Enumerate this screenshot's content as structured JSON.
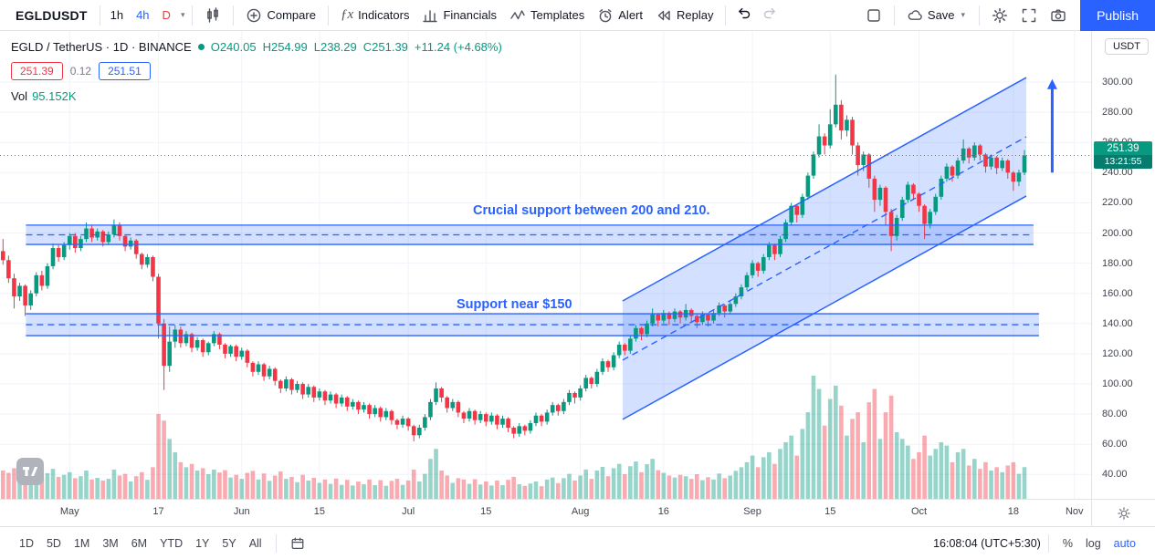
{
  "toolbar": {
    "symbol": "EGLDUSDT",
    "intervals": [
      {
        "label": "1h",
        "color": "#131722"
      },
      {
        "label": "4h",
        "color": "#2962ff"
      },
      {
        "label": "D",
        "color": "#f23645"
      }
    ],
    "compare_label": "Compare",
    "indicators_label": "Indicators",
    "financials_label": "Financials",
    "templates_label": "Templates",
    "alert_label": "Alert",
    "replay_label": "Replay",
    "save_label": "Save",
    "publish_label": "Publish"
  },
  "legend": {
    "title": "EGLD / TetherUS · 1D · BINANCE",
    "ohlc": {
      "o": "O240.05",
      "h": "H254.99",
      "l": "L238.29",
      "c": "C251.39",
      "chg": "+11.24 (+4.68%)"
    },
    "sell_price": "251.39",
    "spread": "0.12",
    "buy_price": "251.51",
    "vol_label": "Vol",
    "vol_value": "95.152K"
  },
  "annotations": {
    "upper": "Crucial support between 200 and 210.",
    "lower": "Support near $150"
  },
  "price_scale": {
    "currency_label": "USDT",
    "last_price": "251.39",
    "countdown": "13:21:55",
    "ticks": [
      {
        "p": 300,
        "label": "300.00"
      },
      {
        "p": 280,
        "label": "280.00"
      },
      {
        "p": 260,
        "label": "260.00"
      },
      {
        "p": 240,
        "label": "240.00"
      },
      {
        "p": 220,
        "label": "220.00"
      },
      {
        "p": 200,
        "label": "200.00"
      },
      {
        "p": 180,
        "label": "180.00"
      },
      {
        "p": 160,
        "label": "160.00"
      },
      {
        "p": 140,
        "label": "140.00"
      },
      {
        "p": 120,
        "label": "120.00"
      },
      {
        "p": 100,
        "label": "100.00"
      },
      {
        "p": 80,
        "label": "80.00"
      },
      {
        "p": 60,
        "label": "60.00"
      },
      {
        "p": 40,
        "label": "40.00"
      }
    ]
  },
  "time_axis": {
    "ticks": [
      {
        "i": 12,
        "label": "May"
      },
      {
        "i": 28,
        "label": "17"
      },
      {
        "i": 43,
        "label": "Jun"
      },
      {
        "i": 57,
        "label": "15"
      },
      {
        "i": 73,
        "label": "Jul"
      },
      {
        "i": 87,
        "label": "15"
      },
      {
        "i": 104,
        "label": "Aug"
      },
      {
        "i": 119,
        "label": "16"
      },
      {
        "i": 135,
        "label": "Sep"
      },
      {
        "i": 149,
        "label": "15"
      },
      {
        "i": 165,
        "label": "Oct"
      },
      {
        "i": 182,
        "label": "18"
      },
      {
        "i": 193,
        "label": "Nov"
      }
    ]
  },
  "bottom_bar": {
    "ranges": [
      "1D",
      "5D",
      "1M",
      "3M",
      "6M",
      "YTD",
      "1Y",
      "5Y",
      "All"
    ],
    "clock": "16:08:04 (UTC+5:30)",
    "percent_label": "%",
    "log_label": "log",
    "auto_label": "auto"
  },
  "chart_data": {
    "type": "candlestick",
    "title": "EGLD / TetherUS Daily on BINANCE",
    "symbol": "EGLD/USDT",
    "interval": "1D",
    "exchange": "BINANCE",
    "last": {
      "open": 240.05,
      "high": 254.99,
      "low": 238.29,
      "close": 251.39,
      "change": "+11.24 (+4.68%)",
      "volume_k": 95.152
    },
    "ylim": [
      30,
      310
    ],
    "colors": {
      "up": "#089981",
      "down": "#f23645",
      "volume_up": "rgba(8,153,129,0.42)",
      "volume_down": "rgba(242,54,69,0.42)",
      "drawing": "#2962ff",
      "drawing_fill": "rgba(41,98,255,0.20)",
      "grid": "#f0f3fa",
      "price_line": "#787b86"
    },
    "price_line": 251.39,
    "drawings": {
      "bands": [
        {
          "i1": 4.5,
          "i2": 186,
          "top": 205.2,
          "bottom": 192.4,
          "note": "Crucial support between 200 and 210."
        },
        {
          "i1": 4.5,
          "i2": 187,
          "top": 146.5,
          "bottom": 132.0,
          "note": "Support near $150"
        }
      ],
      "channel": {
        "i1": 112,
        "i2": 184,
        "top1": 155,
        "top2": 303,
        "bottom1": 76.5,
        "bottom2": 224.5
      },
      "arrow": {
        "i": 189,
        "from": 240,
        "to": 302
      }
    },
    "candles": [
      [
        188,
        196,
        179,
        182,
        85
      ],
      [
        182,
        185,
        167,
        170,
        78
      ],
      [
        170,
        173,
        150,
        158,
        92
      ],
      [
        158,
        167,
        155,
        165,
        70
      ],
      [
        165,
        166,
        145,
        152,
        88
      ],
      [
        152,
        162,
        149,
        160,
        75
      ],
      [
        160,
        174,
        158,
        172,
        82
      ],
      [
        172,
        175,
        162,
        165,
        64
      ],
      [
        165,
        180,
        163,
        178,
        77
      ],
      [
        178,
        193,
        176,
        190,
        90
      ],
      [
        190,
        192,
        181,
        184,
        66
      ],
      [
        184,
        194,
        182,
        192,
        72
      ],
      [
        192,
        200,
        189,
        198,
        80
      ],
      [
        198,
        200,
        187,
        190,
        62
      ],
      [
        190,
        198,
        188,
        196,
        68
      ],
      [
        196,
        207,
        194,
        203,
        85
      ],
      [
        203,
        205,
        194,
        197,
        58
      ],
      [
        197,
        203,
        195,
        201,
        63
      ],
      [
        201,
        202,
        191,
        194,
        55
      ],
      [
        194,
        201,
        192,
        199,
        60
      ],
      [
        199,
        209,
        197,
        205,
        88
      ],
      [
        205,
        207,
        195,
        198,
        70
      ],
      [
        198,
        199,
        188,
        191,
        75
      ],
      [
        191,
        197,
        189,
        195,
        52
      ],
      [
        195,
        196,
        183,
        186,
        68
      ],
      [
        186,
        187,
        176,
        179,
        80
      ],
      [
        179,
        186,
        177,
        184,
        57
      ],
      [
        184,
        185,
        168,
        171,
        95
      ],
      [
        171,
        173,
        130,
        140,
        255
      ],
      [
        140,
        143,
        96,
        112,
        235
      ],
      [
        112,
        138,
        108,
        128,
        180
      ],
      [
        128,
        139,
        124,
        136,
        140
      ],
      [
        136,
        138,
        124,
        127,
        110
      ],
      [
        127,
        135,
        125,
        133,
        95
      ],
      [
        133,
        134,
        121,
        124,
        105
      ],
      [
        124,
        131,
        122,
        129,
        85
      ],
      [
        129,
        130,
        118,
        121,
        92
      ],
      [
        121,
        128,
        119,
        127,
        74
      ],
      [
        127,
        135,
        125,
        133,
        88
      ],
      [
        133,
        134,
        123,
        126,
        79
      ],
      [
        126,
        127,
        117,
        120,
        86
      ],
      [
        120,
        126,
        118,
        125,
        64
      ],
      [
        125,
        126,
        115,
        118,
        72
      ],
      [
        118,
        124,
        116,
        122,
        60
      ],
      [
        122,
        123,
        111,
        114,
        78
      ],
      [
        114,
        115,
        105,
        108,
        84
      ],
      [
        108,
        115,
        106,
        113,
        58
      ],
      [
        113,
        114,
        102,
        105,
        76
      ],
      [
        105,
        112,
        103,
        110,
        54
      ],
      [
        110,
        111,
        99,
        102,
        70
      ],
      [
        102,
        103,
        94,
        97,
        82
      ],
      [
        97,
        105,
        95,
        103,
        60
      ],
      [
        103,
        104,
        93,
        96,
        66
      ],
      [
        96,
        102,
        94,
        100,
        50
      ],
      [
        100,
        101,
        90,
        93,
        72
      ],
      [
        93,
        100,
        91,
        98,
        55
      ],
      [
        98,
        99,
        88,
        91,
        63
      ],
      [
        91,
        97,
        89,
        95,
        48
      ],
      [
        95,
        96,
        86,
        89,
        58
      ],
      [
        89,
        95,
        87,
        93,
        45
      ],
      [
        93,
        94,
        84,
        87,
        61
      ],
      [
        87,
        93,
        85,
        91,
        42
      ],
      [
        91,
        92,
        82,
        85,
        57
      ],
      [
        85,
        90,
        83,
        88,
        40
      ],
      [
        88,
        89,
        80,
        83,
        52
      ],
      [
        83,
        88,
        81,
        86,
        44
      ],
      [
        86,
        87,
        77,
        80,
        58
      ],
      [
        80,
        86,
        78,
        84,
        41
      ],
      [
        84,
        85,
        75,
        78,
        56
      ],
      [
        78,
        84,
        76,
        82,
        39
      ],
      [
        82,
        83,
        73,
        76,
        54
      ],
      [
        76,
        77,
        70,
        73,
        60
      ],
      [
        73,
        79,
        71,
        77,
        42
      ],
      [
        77,
        78,
        69,
        72,
        55
      ],
      [
        72,
        73,
        62,
        66,
        88
      ],
      [
        66,
        73,
        64,
        71,
        52
      ],
      [
        71,
        80,
        69,
        78,
        75
      ],
      [
        78,
        90,
        76,
        88,
        120
      ],
      [
        88,
        101,
        86,
        97,
        150
      ],
      [
        97,
        98,
        88,
        91,
        85
      ],
      [
        91,
        92,
        81,
        84,
        70
      ],
      [
        84,
        90,
        82,
        88,
        48
      ],
      [
        88,
        89,
        78,
        81,
        62
      ],
      [
        81,
        82,
        74,
        77,
        58
      ],
      [
        77,
        84,
        75,
        82,
        45
      ],
      [
        82,
        83,
        73,
        76,
        59
      ],
      [
        76,
        82,
        74,
        80,
        43
      ],
      [
        80,
        81,
        72,
        75,
        52
      ],
      [
        75,
        81,
        73,
        79,
        40
      ],
      [
        79,
        80,
        70,
        73,
        55
      ],
      [
        73,
        79,
        71,
        77,
        41
      ],
      [
        77,
        78,
        68,
        71,
        57
      ],
      [
        71,
        72,
        64,
        67,
        66
      ],
      [
        67,
        74,
        65,
        72,
        44
      ],
      [
        72,
        73,
        66,
        69,
        39
      ],
      [
        69,
        76,
        67,
        74,
        46
      ],
      [
        74,
        81,
        72,
        79,
        52
      ],
      [
        79,
        80,
        72,
        75,
        38
      ],
      [
        75,
        83,
        73,
        81,
        58
      ],
      [
        81,
        88,
        79,
        86,
        64
      ],
      [
        86,
        87,
        79,
        82,
        47
      ],
      [
        82,
        90,
        80,
        88,
        62
      ],
      [
        88,
        96,
        86,
        94,
        75
      ],
      [
        94,
        95,
        87,
        91,
        55
      ],
      [
        91,
        99,
        89,
        97,
        70
      ],
      [
        97,
        106,
        95,
        104,
        88
      ],
      [
        104,
        105,
        97,
        100,
        60
      ],
      [
        100,
        110,
        98,
        108,
        85
      ],
      [
        108,
        117,
        106,
        115,
        96
      ],
      [
        115,
        116,
        108,
        111,
        68
      ],
      [
        111,
        121,
        109,
        119,
        92
      ],
      [
        119,
        128,
        117,
        126,
        105
      ],
      [
        126,
        127,
        119,
        122,
        74
      ],
      [
        122,
        132,
        120,
        130,
        98
      ],
      [
        130,
        139,
        128,
        137,
        112
      ],
      [
        137,
        138,
        129,
        133,
        80
      ],
      [
        133,
        142,
        131,
        140,
        104
      ],
      [
        140,
        150,
        138,
        146,
        120
      ],
      [
        146,
        147,
        138,
        142,
        86
      ],
      [
        142,
        149,
        140,
        147,
        78
      ],
      [
        147,
        148,
        139,
        143,
        70
      ],
      [
        143,
        150,
        141,
        148,
        64
      ],
      [
        148,
        149,
        140,
        144,
        72
      ],
      [
        144,
        153,
        142,
        149,
        68
      ],
      [
        149,
        150,
        141,
        145,
        60
      ],
      [
        145,
        146,
        137,
        141,
        74
      ],
      [
        141,
        148,
        139,
        146,
        56
      ],
      [
        146,
        147,
        138,
        142,
        65
      ],
      [
        142,
        149,
        140,
        147,
        58
      ],
      [
        147,
        154,
        145,
        152,
        76
      ],
      [
        152,
        153,
        144,
        148,
        62
      ],
      [
        148,
        155,
        146,
        153,
        70
      ],
      [
        153,
        160,
        151,
        158,
        84
      ],
      [
        158,
        166,
        156,
        164,
        95
      ],
      [
        164,
        174,
        162,
        172,
        110
      ],
      [
        172,
        182,
        170,
        180,
        130
      ],
      [
        180,
        181,
        171,
        175,
        95
      ],
      [
        175,
        186,
        173,
        184,
        125
      ],
      [
        184,
        194,
        182,
        192,
        140
      ],
      [
        192,
        193,
        182,
        186,
        105
      ],
      [
        186,
        198,
        184,
        196,
        150
      ],
      [
        196,
        209,
        194,
        207,
        170
      ],
      [
        207,
        220,
        205,
        218,
        190
      ],
      [
        218,
        219,
        207,
        212,
        130
      ],
      [
        212,
        226,
        210,
        224,
        210
      ],
      [
        224,
        240,
        222,
        238,
        260
      ],
      [
        238,
        254,
        236,
        252,
        370
      ],
      [
        252,
        272,
        250,
        264,
        330
      ],
      [
        264,
        266,
        252,
        258,
        220
      ],
      [
        258,
        282,
        256,
        272,
        300
      ],
      [
        272,
        305,
        270,
        285,
        340
      ],
      [
        285,
        288,
        262,
        268,
        280
      ],
      [
        268,
        278,
        264,
        275,
        190
      ],
      [
        275,
        277,
        252,
        258,
        240
      ],
      [
        258,
        260,
        238,
        245,
        260
      ],
      [
        245,
        254,
        241,
        252,
        170
      ],
      [
        252,
        253,
        230,
        236,
        290
      ],
      [
        236,
        238,
        214,
        222,
        330
      ],
      [
        222,
        232,
        218,
        230,
        180
      ],
      [
        230,
        231,
        205,
        214,
        260
      ],
      [
        214,
        216,
        188,
        198,
        310
      ],
      [
        198,
        212,
        195,
        210,
        200
      ],
      [
        210,
        224,
        208,
        222,
        180
      ],
      [
        222,
        234,
        220,
        232,
        160
      ],
      [
        232,
        233,
        222,
        226,
        120
      ],
      [
        226,
        227,
        214,
        218,
        140
      ],
      [
        218,
        219,
        196,
        206,
        190
      ],
      [
        206,
        216,
        203,
        214,
        130
      ],
      [
        214,
        226,
        212,
        224,
        150
      ],
      [
        224,
        238,
        222,
        236,
        170
      ],
      [
        236,
        246,
        234,
        244,
        160
      ],
      [
        244,
        245,
        234,
        238,
        110
      ],
      [
        238,
        250,
        236,
        248,
        140
      ],
      [
        248,
        262,
        246,
        256,
        150
      ],
      [
        256,
        257,
        246,
        250,
        100
      ],
      [
        250,
        260,
        248,
        258,
        120
      ],
      [
        258,
        259,
        248,
        252,
        90
      ],
      [
        252,
        253,
        240,
        244,
        110
      ],
      [
        244,
        252,
        242,
        250,
        85
      ],
      [
        250,
        251,
        239,
        243,
        95
      ],
      [
        243,
        250,
        241,
        248,
        80
      ],
      [
        248,
        249,
        236,
        240,
        100
      ],
      [
        240,
        241,
        228,
        234,
        110
      ],
      [
        234,
        242,
        231,
        240,
        75
      ],
      [
        240.05,
        254.99,
        238.29,
        251.39,
        95.152
      ]
    ]
  }
}
